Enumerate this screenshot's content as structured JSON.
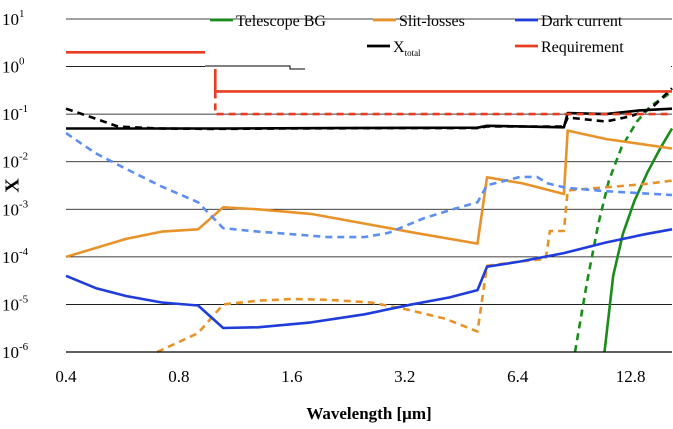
{
  "chart_data": {
    "type": "line",
    "xlabel": "Wavelength [μm]",
    "ylabel": "X",
    "x_scale": "log",
    "y_scale": "log",
    "xlim": [
      0.4,
      16.5
    ],
    "ylim": [
      1e-06,
      10
    ],
    "x_ticks": [
      0.4,
      0.8,
      1.6,
      3.2,
      6.4,
      12.8
    ],
    "x_tick_labels": [
      "0.4",
      "0.8",
      "1.6",
      "3.2",
      "6.4",
      "12.8"
    ],
    "y_ticks": [
      {
        "value": 10,
        "base": "10",
        "exp": "1"
      },
      {
        "value": 1,
        "base": "10",
        "exp": "0"
      },
      {
        "value": 0.1,
        "base": "10",
        "exp": "-1"
      },
      {
        "value": 0.01,
        "base": "10",
        "exp": "-2"
      },
      {
        "value": 0.001,
        "base": "10",
        "exp": "-3"
      },
      {
        "value": 0.0001,
        "base": "10",
        "exp": "-4"
      },
      {
        "value": 1e-05,
        "base": "10",
        "exp": "-5"
      },
      {
        "value": 1e-06,
        "base": "10",
        "exp": "-6"
      }
    ],
    "grid": "horizontal",
    "legend_position": "top",
    "legend": [
      {
        "label": "Telescope BG",
        "sub": "",
        "color": "#1a8c1a"
      },
      {
        "label": "Slit-losses",
        "sub": "",
        "color": "#e8932a"
      },
      {
        "label": "Dark current",
        "sub": "",
        "color": "#1f3ddb"
      },
      {
        "label": "X",
        "sub": "total",
        "color": "#000000"
      },
      {
        "label": "Requirement",
        "sub": "",
        "color": "#ea3c22"
      }
    ],
    "series": [
      {
        "color": "#1a8c1a",
        "dashed": false,
        "points": [
          [
            10.9,
            1e-06
          ],
          [
            11.5,
            4e-05
          ],
          [
            12.2,
            0.0003
          ],
          [
            13.1,
            0.0015
          ],
          [
            14.2,
            0.006
          ],
          [
            15.4,
            0.02
          ],
          [
            16.5,
            0.05
          ]
        ]
      },
      {
        "color": "#1a8c1a",
        "dashed": true,
        "points": [
          [
            9.1,
            1e-06
          ],
          [
            9.8,
            3e-05
          ],
          [
            10.5,
            0.0005
          ],
          [
            11.2,
            0.004
          ],
          [
            12.1,
            0.02
          ],
          [
            13.3,
            0.07
          ],
          [
            14.5,
            0.15
          ],
          [
            16.0,
            0.25
          ],
          [
            16.5,
            0.3
          ]
        ]
      },
      {
        "color": "#e8932a",
        "dashed": false,
        "points": [
          [
            0.4,
            0.0001
          ],
          [
            0.58,
            0.00024
          ],
          [
            0.72,
            0.00034
          ],
          [
            0.9,
            0.00038
          ],
          [
            1.05,
            0.0011
          ],
          [
            1.3,
            0.001
          ],
          [
            1.8,
            0.0008
          ],
          [
            2.5,
            0.0005
          ],
          [
            3.4,
            0.00032
          ],
          [
            5.0,
            0.00019
          ],
          [
            5.3,
            0.0047
          ],
          [
            6.6,
            0.0035
          ],
          [
            8.5,
            0.0021
          ],
          [
            8.7,
            0.045
          ],
          [
            11.0,
            0.03
          ],
          [
            16.5,
            0.019
          ]
        ]
      },
      {
        "color": "#e8932a",
        "dashed": true,
        "points": [
          [
            0.7,
            1e-06
          ],
          [
            0.9,
            2.5e-06
          ],
          [
            1.05,
            1e-05
          ],
          [
            1.3,
            1.2e-05
          ],
          [
            1.6,
            1.3e-05
          ],
          [
            2.0,
            1.25e-05
          ],
          [
            2.6,
            1.1e-05
          ],
          [
            3.2,
            8e-06
          ],
          [
            4.1,
            5e-06
          ],
          [
            5.0,
            2.7e-06
          ],
          [
            5.3,
            6.5e-05
          ],
          [
            6.5,
            8e-05
          ],
          [
            7.6,
            9e-05
          ],
          [
            7.8,
            0.00035
          ],
          [
            8.5,
            0.00035
          ],
          [
            8.7,
            0.0025
          ],
          [
            11.0,
            0.0029
          ],
          [
            14.0,
            0.0034
          ],
          [
            16.5,
            0.004
          ]
        ]
      },
      {
        "color": "#1f3ddb",
        "dashed": false,
        "points": [
          [
            0.4,
            4e-05
          ],
          [
            0.48,
            2.2e-05
          ],
          [
            0.58,
            1.5e-05
          ],
          [
            0.72,
            1.1e-05
          ],
          [
            0.9,
            9.5e-06
          ],
          [
            1.05,
            3.2e-06
          ],
          [
            1.3,
            3.3e-06
          ],
          [
            1.8,
            4.2e-06
          ],
          [
            2.5,
            6.2e-06
          ],
          [
            3.3,
            9.8e-06
          ],
          [
            4.2,
            1.4e-05
          ],
          [
            5.0,
            2e-05
          ],
          [
            5.3,
            6.2e-05
          ],
          [
            6.5,
            8e-05
          ],
          [
            8.5,
            0.00012
          ],
          [
            11.0,
            0.0002
          ],
          [
            14.0,
            0.0003
          ],
          [
            16.5,
            0.00038
          ]
        ]
      },
      {
        "color": "#5b8ff2",
        "dashed": true,
        "points": [
          [
            0.4,
            0.04
          ],
          [
            0.48,
            0.015
          ],
          [
            0.58,
            0.007
          ],
          [
            0.72,
            0.003
          ],
          [
            0.9,
            0.0014
          ],
          [
            1.05,
            0.0004
          ],
          [
            1.3,
            0.00034
          ],
          [
            1.6,
            0.0003
          ],
          [
            2.0,
            0.00026
          ],
          [
            2.5,
            0.00026
          ],
          [
            2.9,
            0.00032
          ],
          [
            3.6,
            0.00065
          ],
          [
            4.3,
            0.001
          ],
          [
            5.0,
            0.0014
          ],
          [
            5.3,
            0.0032
          ],
          [
            6.5,
            0.0048
          ],
          [
            7.2,
            0.0048
          ],
          [
            7.7,
            0.0035
          ],
          [
            8.5,
            0.0029
          ],
          [
            8.7,
            0.0028
          ],
          [
            11.0,
            0.0024
          ],
          [
            16.5,
            0.002
          ]
        ]
      },
      {
        "color": "#000000",
        "dashed": false,
        "points": [
          [
            0.4,
            0.05
          ],
          [
            0.9,
            0.05
          ],
          [
            1.05,
            0.05
          ],
          [
            2.0,
            0.051
          ],
          [
            5.0,
            0.052
          ],
          [
            5.3,
            0.057
          ],
          [
            8.5,
            0.053
          ],
          [
            8.7,
            0.105
          ],
          [
            11.0,
            0.1
          ],
          [
            13.5,
            0.12
          ],
          [
            16.5,
            0.13
          ]
        ]
      },
      {
        "color": "#000000",
        "dashed": true,
        "points": [
          [
            0.4,
            0.13
          ],
          [
            0.46,
            0.09
          ],
          [
            0.55,
            0.055
          ],
          [
            0.7,
            0.05
          ],
          [
            1.0,
            0.049
          ],
          [
            1.5,
            0.05
          ],
          [
            3.0,
            0.051
          ],
          [
            5.0,
            0.051
          ],
          [
            5.3,
            0.055
          ],
          [
            8.5,
            0.055
          ],
          [
            8.7,
            0.085
          ],
          [
            11.0,
            0.07
          ],
          [
            12.8,
            0.09
          ],
          [
            14.5,
            0.13
          ],
          [
            16.5,
            0.35
          ]
        ]
      },
      {
        "color": "#ea3c22",
        "dashed": false,
        "points": [
          [
            0.4,
            2
          ],
          [
            1.0,
            2
          ],
          [
            1.0,
            0.3
          ],
          [
            16.5,
            0.3
          ]
        ]
      },
      {
        "color": "#ea3c22",
        "dashed": true,
        "points": [
          [
            1.0,
            0.3
          ],
          [
            1.0,
            0.1
          ],
          [
            16.5,
            0.1
          ]
        ]
      }
    ]
  }
}
